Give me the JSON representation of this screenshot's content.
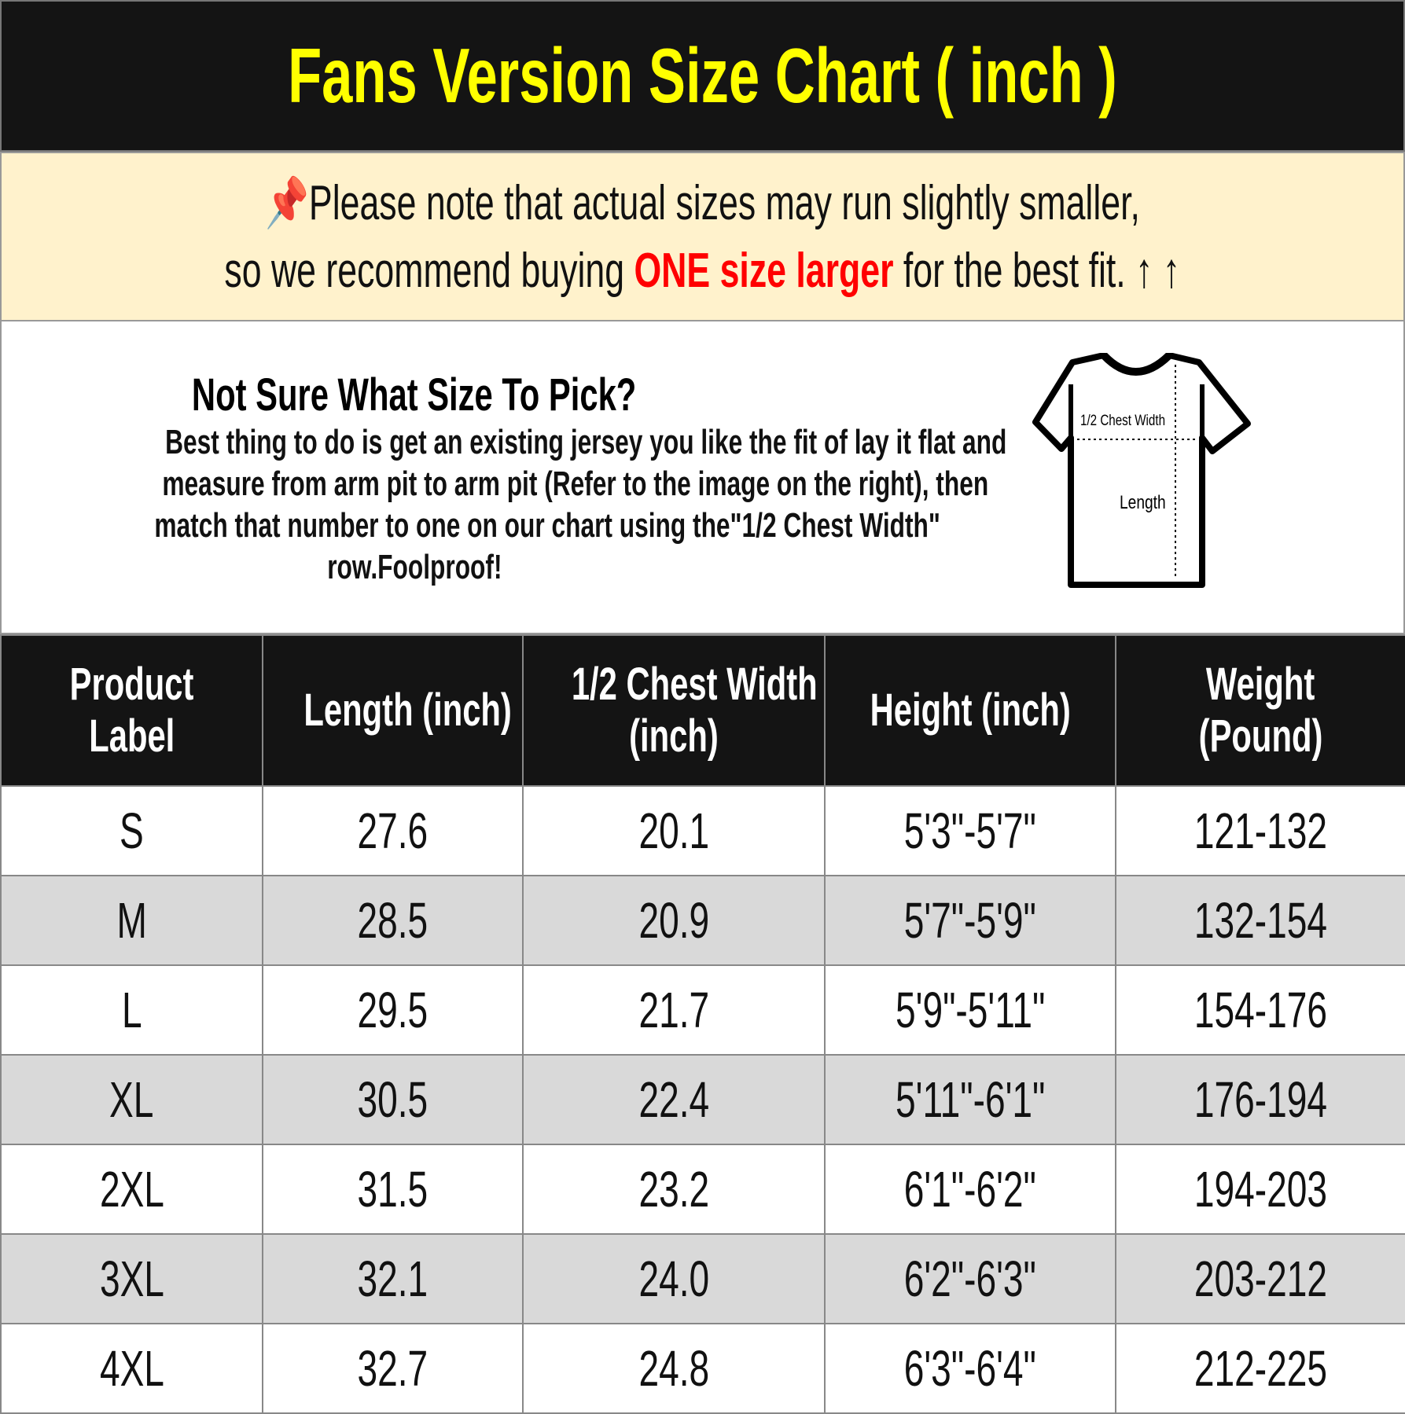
{
  "title": "Fans Version Size Chart ( inch )",
  "note": {
    "icon": "pushpin-icon",
    "line1": "Please note that actual sizes may run slightly smaller,",
    "line2_pre": "so we recommend buying ",
    "line2_highlight": "ONE size larger",
    "line2_post": " for the best fit.",
    "arrows": "↑ ↑",
    "highlight_color": "#ff0000"
  },
  "info": {
    "heading": "Not Sure What Size To Pick?",
    "lines": [
      "Best thing to do is get an existing jersey you like the fit of lay it flat and",
      "measure from arm pit to arm pit (Refer to the image on the right), then",
      "match that number to one on our chart using the\"1/2 Chest Width\"",
      "row.Foolproof!"
    ],
    "diagram": {
      "chest_label": "1/2 Chest Width",
      "length_label": "Length"
    }
  },
  "table": {
    "headers": [
      [
        "Product",
        "Label"
      ],
      [
        "Length (inch)"
      ],
      [
        "1/2 Chest Width",
        "(inch)"
      ],
      [
        "Height (inch)"
      ],
      [
        "Weight",
        "(Pound)"
      ]
    ],
    "rows": [
      [
        "S",
        "27.6",
        "20.1",
        "5'3\"-5'7\"",
        "121-132"
      ],
      [
        "M",
        "28.5",
        "20.9",
        "5'7\"-5'9\"",
        "132-154"
      ],
      [
        "L",
        "29.5",
        "21.7",
        "5'9\"-5'11\"",
        "154-176"
      ],
      [
        "XL",
        "30.5",
        "22.4",
        "5'11\"-6'1\"",
        "176-194"
      ],
      [
        "2XL",
        "31.5",
        "23.2",
        "6'1\"-6'2\"",
        "194-203"
      ],
      [
        "3XL",
        "32.1",
        "24.0",
        "6'2\"-6'3\"",
        "203-212"
      ],
      [
        "4XL",
        "32.7",
        "24.8",
        "6'3\"-6'4\"",
        "212-225"
      ]
    ]
  }
}
